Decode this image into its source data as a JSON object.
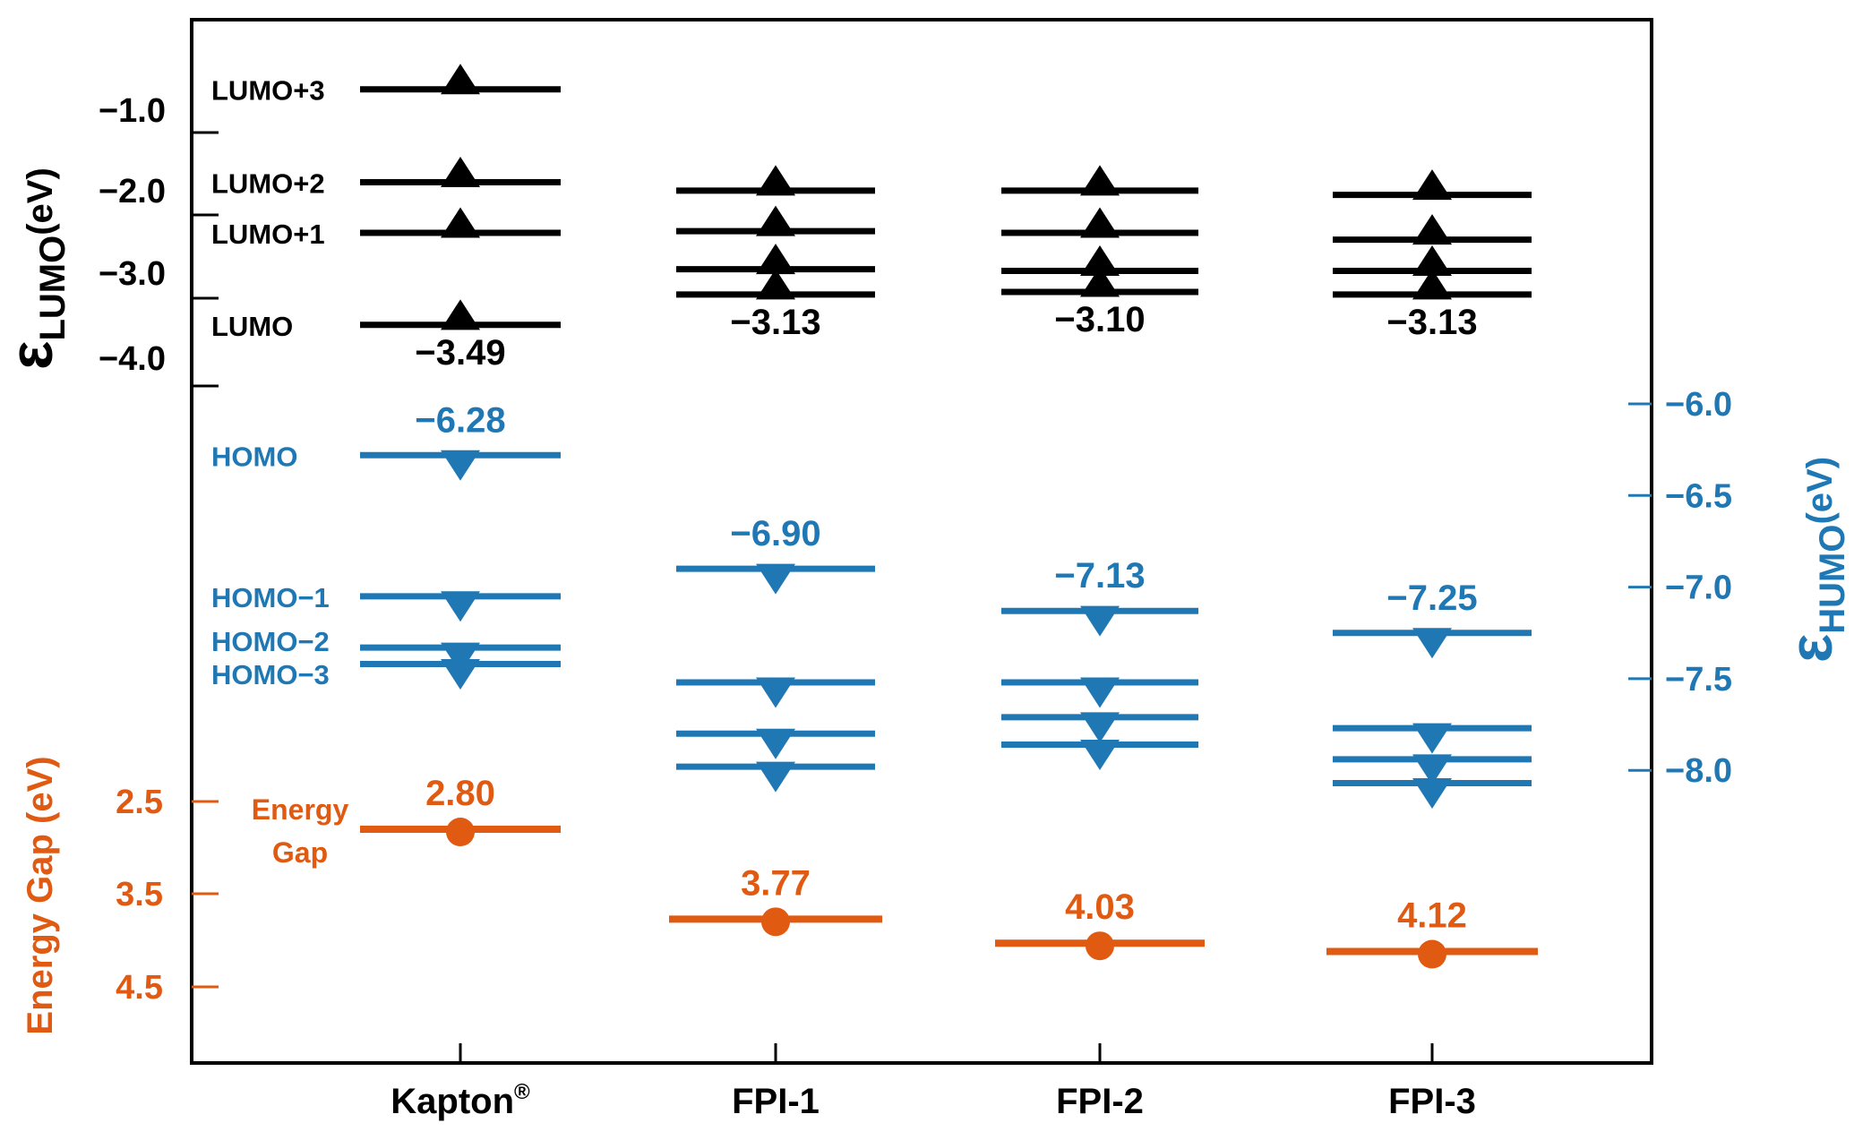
{
  "chart_data": {
    "type": "energy-level-diagram",
    "categories": [
      "Kapton",
      "FPI-1",
      "FPI-2",
      "FPI-3"
    ],
    "category_superscripts": [
      "®",
      "",
      "",
      ""
    ],
    "left_axis_lumo": {
      "label_symbol": "ε",
      "label_subscript": "LUMO",
      "label_unit": "(eV)",
      "ticks": [
        -1.0,
        -2.0,
        -3.0,
        -4.0
      ],
      "tick_labels": [
        "−1.0",
        "−2.0",
        "−3.0",
        "−4.0"
      ]
    },
    "left_axis_gap": {
      "label": "Energy Gap (eV)",
      "ticks": [
        2.5,
        3.5,
        4.5
      ],
      "tick_labels": [
        "2.5",
        "3.5",
        "4.5"
      ]
    },
    "right_axis_homo": {
      "label_symbol": "ε",
      "label_subscript": "HUMO",
      "label_unit": "(eV)",
      "ticks": [
        -6.0,
        -6.5,
        -7.0,
        -7.5,
        -8.0
      ],
      "tick_labels": [
        "−6.0",
        "−6.5",
        "−7.0",
        "−7.5",
        "−8.0"
      ]
    },
    "lumo_series": [
      {
        "name": "LUMO",
        "values": [
          -3.49,
          -3.13,
          -3.1,
          -3.13
        ]
      },
      {
        "name": "LUMO+1",
        "values": [
          -2.4,
          -2.38,
          -2.4,
          -2.48
        ]
      },
      {
        "name": "LUMO+2",
        "values": [
          -1.8,
          -2.83,
          -2.85,
          -2.85
        ]
      },
      {
        "name": "LUMO+3",
        "values": [
          -0.7,
          -1.9,
          -1.9,
          -1.95
        ]
      }
    ],
    "lumo_value_labels": [
      "−3.49",
      "−3.13",
      "−3.10",
      "−3.13"
    ],
    "homo_series": [
      {
        "name": "HOMO",
        "values": [
          -6.28,
          -6.9,
          -7.13,
          -7.25
        ]
      },
      {
        "name": "HOMO−1",
        "values": [
          -7.05,
          -7.52,
          -7.52,
          -7.77
        ]
      },
      {
        "name": "HOMO−2",
        "values": [
          -7.33,
          -7.8,
          -7.71,
          -7.94
        ]
      },
      {
        "name": "HOMO−3",
        "values": [
          -7.42,
          -7.98,
          -7.86,
          -8.07
        ]
      }
    ],
    "homo_value_labels": [
      "−6.28",
      "−6.90",
      "−7.13",
      "−7.25"
    ],
    "energy_gap": {
      "name": "Energy Gap",
      "values": [
        2.8,
        3.77,
        4.03,
        4.12
      ],
      "value_labels": [
        "2.80",
        "3.77",
        "4.03",
        "4.12"
      ]
    },
    "level_labels": {
      "lumo": [
        "LUMO",
        "LUMO+1",
        "LUMO+2",
        "LUMO+3"
      ],
      "homo": [
        "HOMO",
        "HOMO−1",
        "HOMO−2",
        "HOMO−3"
      ],
      "gap_line1": "Energy",
      "gap_line2": "Gap"
    },
    "colors": {
      "lumo": "#000000",
      "homo": "#1f78b4",
      "gap": "#e05a12"
    }
  }
}
